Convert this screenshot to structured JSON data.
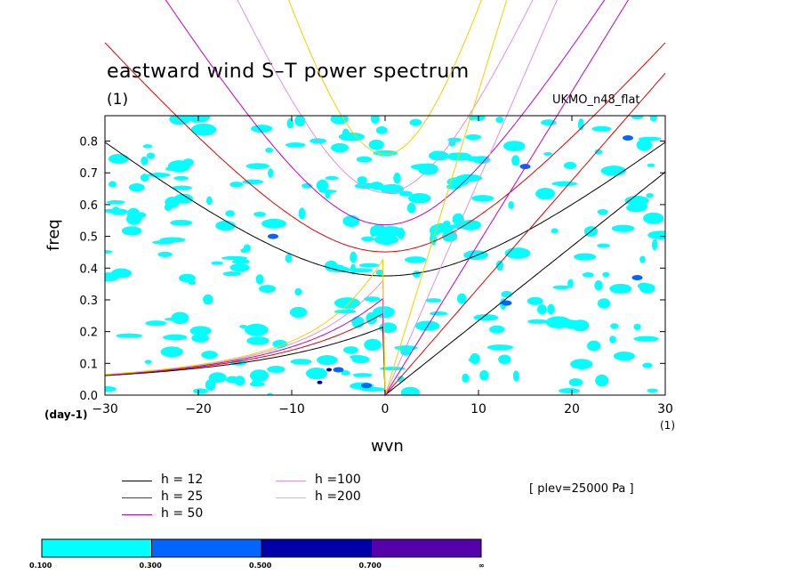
{
  "title": "eastward wind S–T power spectrum",
  "subtitle": "(1)",
  "model_label": "UKMO_n48_flat",
  "level_label": "[ plev=25000 Pa ]",
  "chart_data": {
    "type": "contour",
    "xlabel": "wvn",
    "ylabel": "freq",
    "x_unit": "(1)",
    "y_unit": "(day-1)",
    "xlim": [
      -30,
      30
    ],
    "ylim": [
      0.0,
      0.88
    ],
    "x_ticks": [
      -30,
      -20,
      -10,
      0,
      10,
      20,
      30
    ],
    "x_tick_labels": [
      "−30",
      "−20",
      "−10",
      "0",
      "10",
      "20",
      "30"
    ],
    "y_ticks": [
      0.0,
      0.1,
      0.2,
      0.3,
      0.4,
      0.5,
      0.6,
      0.7,
      0.8
    ],
    "y_tick_labels": [
      "0.0",
      "0.1",
      "0.2",
      "0.3",
      "0.4",
      "0.5",
      "0.6",
      "0.7",
      "0.8"
    ],
    "series": [
      {
        "name": "h = 12",
        "h": 12,
        "color": "#000000"
      },
      {
        "name": "h = 25",
        "h": 25,
        "color": "#e00000"
      },
      {
        "name": "h = 50",
        "h": 50,
        "color": "#c000c0"
      },
      {
        "name": "h =100",
        "h": 100,
        "color": "#e090e0"
      },
      {
        "name": "h =200",
        "h": 200,
        "color": "#f0d000"
      }
    ],
    "levels": [
      "0.100",
      "0.300",
      "0.500",
      "0.700",
      "∞"
    ],
    "level_colors": [
      "#00ffff",
      "#0066ff",
      "#0000aa",
      "#5500aa"
    ]
  }
}
